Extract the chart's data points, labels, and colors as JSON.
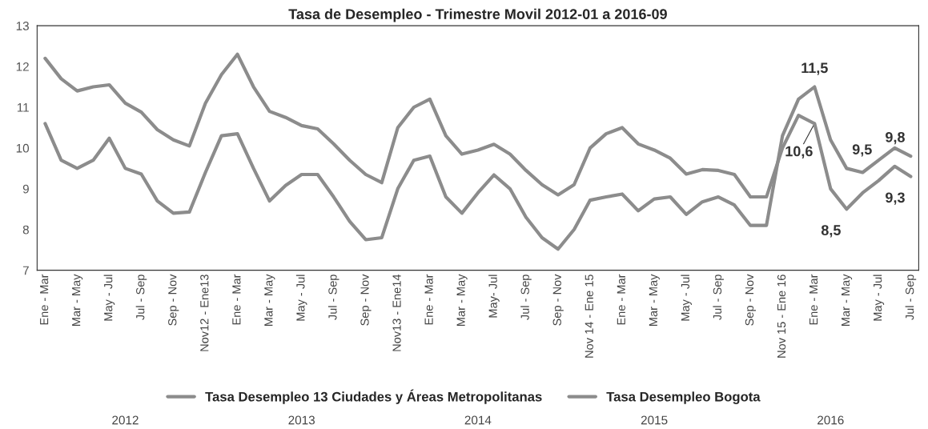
{
  "chart_data": {
    "type": "line",
    "title": "Tasa de Desempleo - Trimestre Movil 2012-01 a 2016-09",
    "categories": [
      "Ene - Mar",
      null,
      "Mar - May",
      null,
      "May - Jul",
      null,
      "Jul - Sep",
      null,
      "Sep - Nov",
      null,
      "Nov12 - Ene13",
      null,
      "Ene - Mar",
      null,
      "Mar - May",
      null,
      "May - Jul",
      null,
      "Jul - Sep",
      null,
      "Sep - Nov",
      null,
      "Nov13 - Ene14",
      null,
      "Ene - Mar",
      null,
      "Mar - May",
      null,
      "May- Jul",
      null,
      "Jul - Sep",
      null,
      "Sep - Nov",
      null,
      "Nov 14 - Ene 15",
      null,
      "Ene - Mar",
      null,
      "Mar - May",
      null,
      "May - Jul",
      null,
      "Jul - Sep",
      null,
      "Sep - Nov",
      null,
      "Nov 15 - Ene 16",
      null,
      "Ene - Mar",
      null,
      "Mar - May",
      null,
      "May - Jul",
      null,
      "Jul - Sep"
    ],
    "series": [
      {
        "name": "Tasa Desempleo 13 Ciudades y Áreas Metropolitanas",
        "color": "#8c8c8c",
        "values": [
          12.2,
          11.7,
          11.4,
          11.5,
          11.55,
          11.1,
          10.88,
          10.45,
          10.2,
          10.05,
          11.1,
          11.8,
          12.3,
          11.5,
          10.9,
          10.75,
          10.55,
          10.47,
          10.1,
          9.7,
          9.35,
          9.15,
          10.5,
          11.0,
          11.2,
          10.3,
          9.85,
          9.95,
          10.09,
          9.85,
          9.45,
          9.1,
          8.85,
          9.1,
          10.0,
          10.35,
          10.5,
          10.1,
          9.95,
          9.75,
          9.36,
          9.47,
          9.45,
          9.35,
          8.8,
          8.8,
          10.0,
          10.8,
          10.6,
          9.0,
          8.5,
          8.9,
          9.2,
          9.55,
          9.3
        ],
        "value_labels": [
          null,
          null,
          null,
          null,
          null,
          null,
          null,
          null,
          null,
          null,
          null,
          null,
          null,
          null,
          null,
          null,
          null,
          null,
          null,
          null,
          null,
          null,
          null,
          null,
          null,
          null,
          null,
          null,
          null,
          null,
          null,
          null,
          null,
          null,
          null,
          null,
          null,
          null,
          null,
          null,
          null,
          null,
          null,
          null,
          null,
          null,
          null,
          null,
          "10,6",
          null,
          "8,5",
          null,
          null,
          null,
          "9,3"
        ]
      },
      {
        "name": "Tasa Desempleo Bogota",
        "color": "#8c8c8c",
        "values": [
          10.6,
          9.7,
          9.5,
          9.7,
          10.24,
          9.5,
          9.36,
          8.7,
          8.4,
          8.43,
          9.4,
          10.3,
          10.35,
          9.5,
          8.7,
          9.08,
          9.35,
          9.35,
          8.8,
          8.2,
          7.75,
          7.8,
          9.0,
          9.7,
          9.8,
          8.8,
          8.4,
          8.9,
          9.34,
          9.0,
          8.3,
          7.8,
          7.52,
          8.0,
          8.72,
          8.8,
          8.87,
          8.46,
          8.75,
          8.8,
          8.37,
          8.68,
          8.8,
          8.6,
          8.1,
          8.1,
          10.3,
          11.2,
          11.5,
          10.2,
          9.5,
          9.4,
          9.7,
          10.0,
          9.8
        ],
        "value_labels": [
          null,
          null,
          null,
          null,
          null,
          null,
          null,
          null,
          null,
          null,
          null,
          null,
          null,
          null,
          null,
          null,
          null,
          null,
          null,
          null,
          null,
          null,
          null,
          null,
          null,
          null,
          null,
          null,
          null,
          null,
          null,
          null,
          null,
          null,
          null,
          null,
          null,
          null,
          null,
          null,
          null,
          null,
          null,
          null,
          null,
          null,
          null,
          null,
          "11,5",
          null,
          "9,5",
          null,
          null,
          null,
          "9,8"
        ]
      }
    ],
    "ylim": [
      7,
      13
    ],
    "yticks": [
      7,
      8,
      9,
      10,
      11,
      12,
      13
    ],
    "grid": false,
    "legend": "bottom",
    "marker": "none",
    "line_style": "solid",
    "annotations": [
      "2012",
      "2013",
      "2014",
      "2015",
      "2016"
    ]
  }
}
